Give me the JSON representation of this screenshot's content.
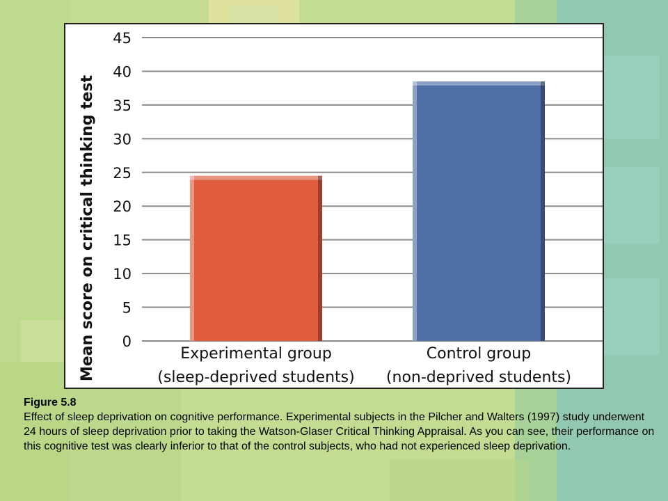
{
  "chart_data": {
    "type": "bar",
    "categories": [
      [
        "Experimental group",
        "(sleep-deprived students)"
      ],
      [
        "Control group",
        "(non-deprived students)"
      ]
    ],
    "values": [
      24.5,
      38.5
    ],
    "ylabel": "Mean score on critical thinking test",
    "xlabel": "",
    "ylim": [
      0,
      45
    ],
    "yticks": [
      0,
      5,
      10,
      15,
      20,
      25,
      30,
      35,
      40,
      45
    ],
    "grid": true,
    "legend": "none",
    "colors": [
      "#e05c3e",
      "#4d6fa6"
    ]
  },
  "caption": {
    "title": "Figure 5.8",
    "body": "Effect of sleep deprivation on cognitive performance. Experimental subjects in the Pilcher and Walters (1997) study underwent 24 hours of sleep deprivation prior to taking the Watson-Glaser Critical Thinking Appraisal. As you can see, their performance on this cognitive test was clearly inferior to that of the control subjects, who had not experienced sleep deprivation."
  }
}
